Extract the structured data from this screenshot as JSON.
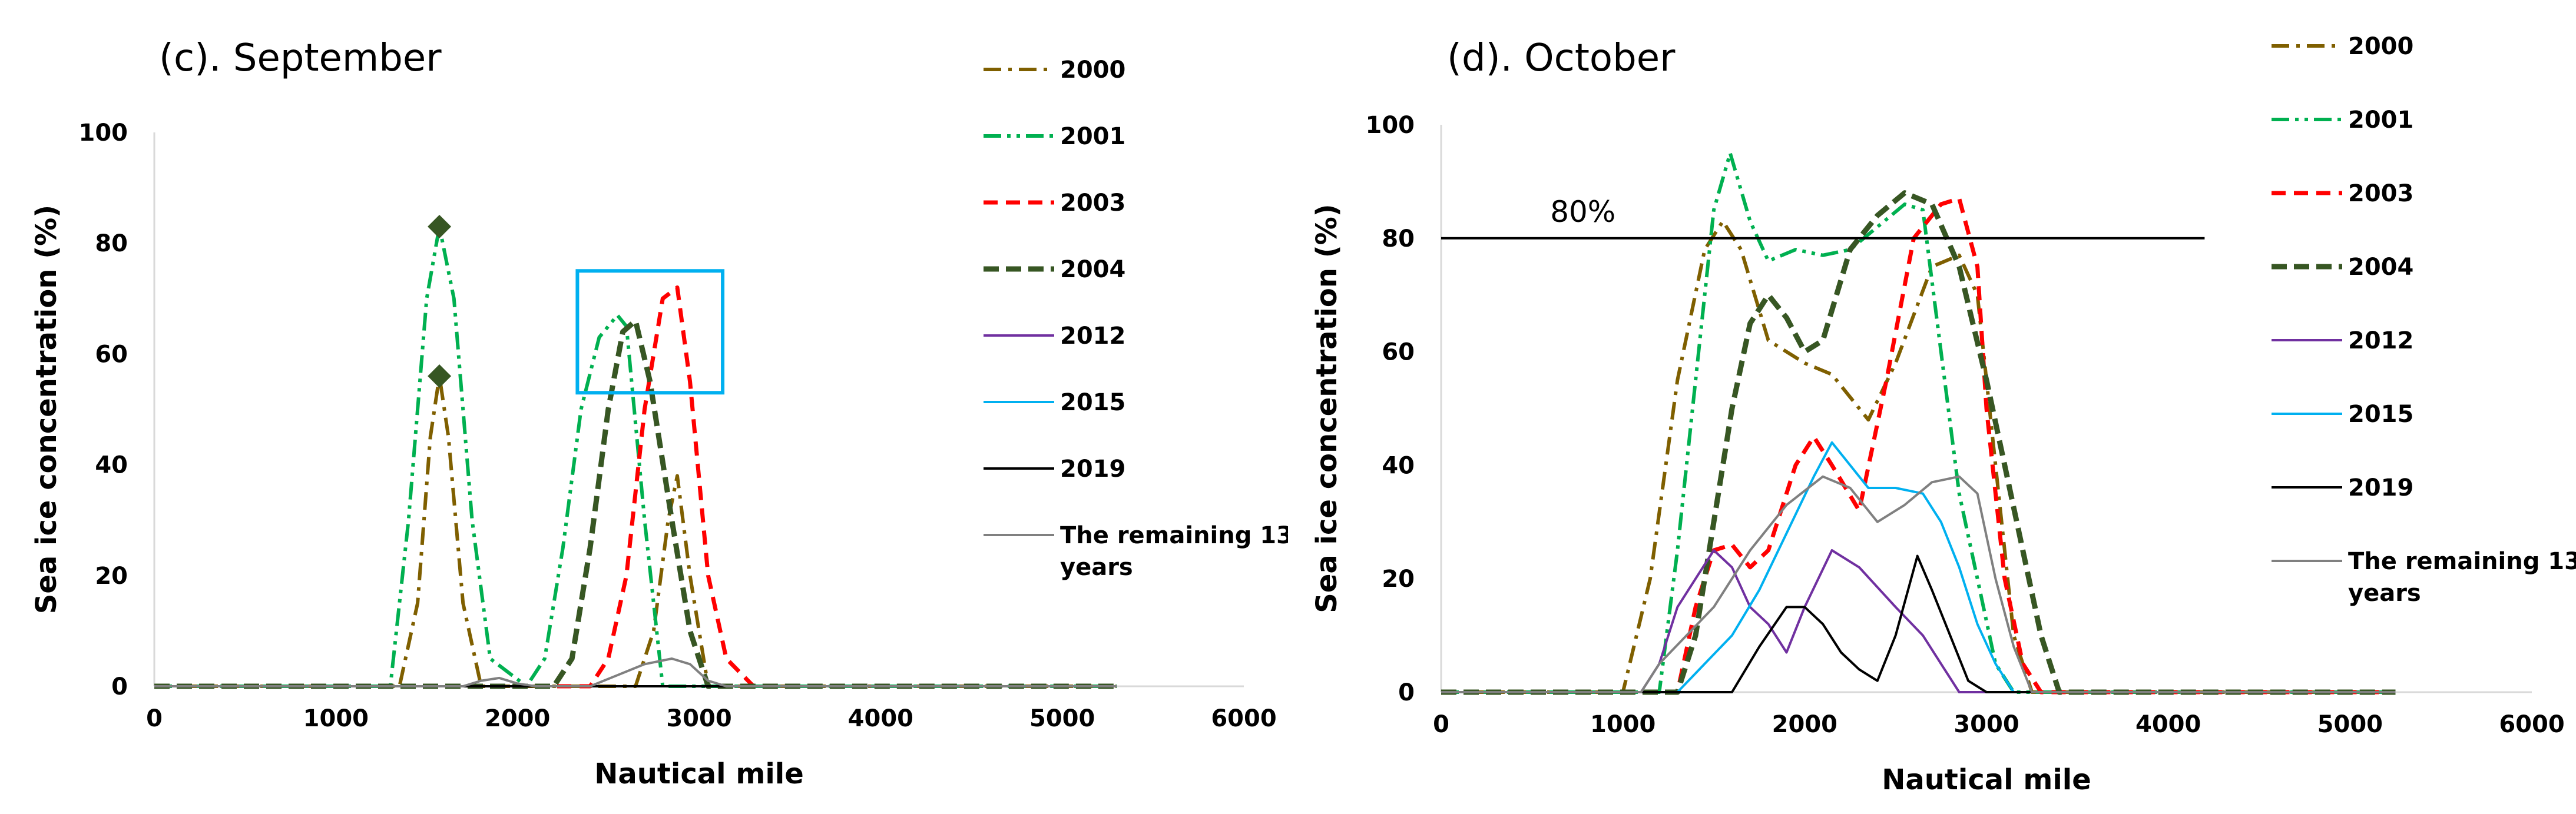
{
  "chart_data": [
    {
      "type": "line",
      "title": "(c). September",
      "xlabel": "Nautical mile",
      "ylabel": "Sea ice concentration (%)",
      "xlim": [
        0,
        6000
      ],
      "ylim": [
        0,
        100
      ],
      "xticks": [
        "0",
        "1000",
        "2000",
        "3000",
        "4000",
        "5000",
        "6000"
      ],
      "yticks": [
        "0",
        "20",
        "40",
        "60",
        "80",
        "100"
      ],
      "legend_position": "right",
      "legend": [
        "2000",
        "2001",
        "2003",
        "2004",
        "2012",
        "2015",
        "2019",
        "The remaining 13 years"
      ],
      "series": [
        {
          "name": "2000",
          "color": "#7f5f00",
          "dash": "dashdot",
          "points": [
            [
              0,
              0
            ],
            [
              1350,
              0
            ],
            [
              1450,
              15
            ],
            [
              1520,
              45
            ],
            [
              1570,
              56
            ],
            [
              1620,
              45
            ],
            [
              1700,
              15
            ],
            [
              1800,
              0
            ],
            [
              2650,
              0
            ],
            [
              2750,
              10
            ],
            [
              2830,
              30
            ],
            [
              2880,
              38
            ],
            [
              2950,
              20
            ],
            [
              3050,
              0
            ],
            [
              5300,
              0
            ]
          ]
        },
        {
          "name": "2001",
          "color": "#00b050",
          "dash": "dashdotdot",
          "points": [
            [
              0,
              0
            ],
            [
              1300,
              0
            ],
            [
              1400,
              30
            ],
            [
              1500,
              70
            ],
            [
              1570,
              83
            ],
            [
              1650,
              70
            ],
            [
              1750,
              30
            ],
            [
              1850,
              5
            ],
            [
              2050,
              0
            ],
            [
              2150,
              5
            ],
            [
              2250,
              25
            ],
            [
              2350,
              50
            ],
            [
              2450,
              63
            ],
            [
              2550,
              67
            ],
            [
              2600,
              65
            ],
            [
              2700,
              30
            ],
            [
              2800,
              0
            ],
            [
              5300,
              0
            ]
          ]
        },
        {
          "name": "2003",
          "color": "#ff0000",
          "dash": "dash",
          "points": [
            [
              0,
              0
            ],
            [
              2400,
              0
            ],
            [
              2500,
              5
            ],
            [
              2600,
              20
            ],
            [
              2700,
              50
            ],
            [
              2800,
              70
            ],
            [
              2880,
              72
            ],
            [
              2950,
              55
            ],
            [
              3050,
              20
            ],
            [
              3150,
              5
            ],
            [
              3300,
              0
            ],
            [
              5300,
              0
            ]
          ]
        },
        {
          "name": "2004",
          "color": "#375623",
          "dash": "dash-bold",
          "points": [
            [
              0,
              0
            ],
            [
              2200,
              0
            ],
            [
              2300,
              5
            ],
            [
              2400,
              25
            ],
            [
              2500,
              50
            ],
            [
              2580,
              64
            ],
            [
              2650,
              66
            ],
            [
              2730,
              55
            ],
            [
              2850,
              30
            ],
            [
              2950,
              10
            ],
            [
              3050,
              0
            ],
            [
              5300,
              0
            ]
          ]
        },
        {
          "name": "2012",
          "color": "#7030a0",
          "dash": "solid",
          "points": [
            [
              0,
              0
            ],
            [
              5300,
              0
            ]
          ]
        },
        {
          "name": "2015",
          "color": "#00b0f0",
          "dash": "solid",
          "points": [
            [
              0,
              0
            ],
            [
              5300,
              0
            ]
          ]
        },
        {
          "name": "2019",
          "color": "#000000",
          "dash": "solid",
          "points": [
            [
              0,
              0
            ],
            [
              5300,
              0
            ]
          ]
        },
        {
          "name": "The remaining 13 years",
          "color": "#808080",
          "dash": "solid",
          "points": [
            [
              0,
              0
            ],
            [
              1700,
              0
            ],
            [
              1800,
              1
            ],
            [
              1900,
              1.5
            ],
            [
              2000,
              0.5
            ],
            [
              2100,
              0
            ],
            [
              2400,
              0
            ],
            [
              2550,
              2
            ],
            [
              2700,
              4
            ],
            [
              2850,
              5
            ],
            [
              2950,
              4
            ],
            [
              3050,
              1
            ],
            [
              3150,
              0
            ],
            [
              5300,
              0
            ]
          ]
        }
      ],
      "markers": [
        {
          "x": 1570,
          "y": 83,
          "color": "#375623",
          "shape": "diamond"
        },
        {
          "x": 1570,
          "y": 56,
          "color": "#375623",
          "shape": "diamond"
        }
      ],
      "annotations": [
        {
          "type": "rect",
          "x0": 2330,
          "x1": 3130,
          "y0": 53,
          "y1": 75,
          "color": "#00b0f0"
        }
      ]
    },
    {
      "type": "line",
      "title": "(d). October",
      "xlabel": "Nautical mile",
      "ylabel": "Sea ice concentration (%)",
      "xlim": [
        0,
        6000
      ],
      "ylim": [
        0,
        100
      ],
      "xticks": [
        "0",
        "1000",
        "2000",
        "3000",
        "4000",
        "5000",
        "6000"
      ],
      "yticks": [
        "0",
        "20",
        "40",
        "60",
        "80",
        "100"
      ],
      "legend_position": "right",
      "legend": [
        "2000",
        "2001",
        "2003",
        "2004",
        "2012",
        "2015",
        "2019",
        "The remaining 13 years"
      ],
      "series": [
        {
          "name": "2000",
          "color": "#7f5f00",
          "dash": "dashdot",
          "points": [
            [
              0,
              0
            ],
            [
              1000,
              0
            ],
            [
              1150,
              20
            ],
            [
              1300,
              55
            ],
            [
              1450,
              78
            ],
            [
              1550,
              83
            ],
            [
              1650,
              78
            ],
            [
              1800,
              62
            ],
            [
              2000,
              58
            ],
            [
              2150,
              56
            ],
            [
              2350,
              48
            ],
            [
              2500,
              58
            ],
            [
              2700,
              75
            ],
            [
              2850,
              77
            ],
            [
              2950,
              70
            ],
            [
              3050,
              40
            ],
            [
              3150,
              10
            ],
            [
              3250,
              0
            ],
            [
              5250,
              0
            ]
          ]
        },
        {
          "name": "2001",
          "color": "#00b050",
          "dash": "dashdotdot",
          "points": [
            [
              0,
              0
            ],
            [
              1200,
              0
            ],
            [
              1300,
              25
            ],
            [
              1400,
              55
            ],
            [
              1500,
              85
            ],
            [
              1590,
              95
            ],
            [
              1700,
              83
            ],
            [
              1800,
              76
            ],
            [
              1950,
              78
            ],
            [
              2100,
              77
            ],
            [
              2250,
              78
            ],
            [
              2400,
              82
            ],
            [
              2550,
              86
            ],
            [
              2650,
              85
            ],
            [
              2750,
              60
            ],
            [
              2850,
              35
            ],
            [
              2950,
              20
            ],
            [
              3050,
              5
            ],
            [
              3150,
              0
            ],
            [
              5250,
              0
            ]
          ]
        },
        {
          "name": "2003",
          "color": "#ff0000",
          "dash": "dash",
          "points": [
            [
              0,
              0
            ],
            [
              1300,
              0
            ],
            [
              1400,
              15
            ],
            [
              1500,
              25
            ],
            [
              1600,
              26
            ],
            [
              1700,
              22
            ],
            [
              1800,
              25
            ],
            [
              1950,
              40
            ],
            [
              2050,
              45
            ],
            [
              2150,
              40
            ],
            [
              2300,
              32
            ],
            [
              2450,
              55
            ],
            [
              2600,
              80
            ],
            [
              2750,
              86
            ],
            [
              2850,
              87
            ],
            [
              2950,
              75
            ],
            [
              3000,
              50
            ],
            [
              3100,
              20
            ],
            [
              3200,
              5
            ],
            [
              3300,
              0
            ],
            [
              5250,
              0
            ]
          ]
        },
        {
          "name": "2004",
          "color": "#375623",
          "dash": "dash-bold",
          "points": [
            [
              0,
              0
            ],
            [
              1300,
              0
            ],
            [
              1400,
              10
            ],
            [
              1500,
              30
            ],
            [
              1600,
              50
            ],
            [
              1700,
              65
            ],
            [
              1800,
              70
            ],
            [
              1900,
              66
            ],
            [
              2000,
              60
            ],
            [
              2100,
              62
            ],
            [
              2250,
              78
            ],
            [
              2400,
              84
            ],
            [
              2550,
              88
            ],
            [
              2700,
              86
            ],
            [
              2850,
              75
            ],
            [
              3000,
              55
            ],
            [
              3100,
              40
            ],
            [
              3200,
              25
            ],
            [
              3300,
              10
            ],
            [
              3400,
              0
            ],
            [
              5250,
              0
            ]
          ]
        },
        {
          "name": "2012",
          "color": "#7030a0",
          "dash": "solid",
          "points": [
            [
              0,
              0
            ],
            [
              1100,
              0
            ],
            [
              1200,
              5
            ],
            [
              1300,
              15
            ],
            [
              1400,
              20
            ],
            [
              1500,
              25
            ],
            [
              1600,
              22
            ],
            [
              1700,
              15
            ],
            [
              1800,
              12
            ],
            [
              1900,
              7
            ],
            [
              2000,
              15
            ],
            [
              2150,
              25
            ],
            [
              2300,
              22
            ],
            [
              2500,
              15
            ],
            [
              2650,
              10
            ],
            [
              2750,
              5
            ],
            [
              2850,
              0
            ],
            [
              5250,
              0
            ]
          ]
        },
        {
          "name": "2015",
          "color": "#00b0f0",
          "dash": "solid",
          "points": [
            [
              0,
              0
            ],
            [
              1300,
              0
            ],
            [
              1450,
              5
            ],
            [
              1600,
              10
            ],
            [
              1750,
              18
            ],
            [
              1900,
              28
            ],
            [
              2050,
              38
            ],
            [
              2150,
              44
            ],
            [
              2250,
              40
            ],
            [
              2350,
              36
            ],
            [
              2500,
              36
            ],
            [
              2650,
              35
            ],
            [
              2750,
              30
            ],
            [
              2850,
              22
            ],
            [
              2950,
              12
            ],
            [
              3050,
              5
            ],
            [
              3150,
              0
            ],
            [
              5250,
              0
            ]
          ]
        },
        {
          "name": "2019",
          "color": "#000000",
          "dash": "solid",
          "points": [
            [
              0,
              0
            ],
            [
              1600,
              0
            ],
            [
              1750,
              8
            ],
            [
              1900,
              15
            ],
            [
              2000,
              15
            ],
            [
              2100,
              12
            ],
            [
              2200,
              7
            ],
            [
              2300,
              4
            ],
            [
              2400,
              2
            ],
            [
              2500,
              10
            ],
            [
              2620,
              24
            ],
            [
              2700,
              18
            ],
            [
              2800,
              10
            ],
            [
              2900,
              2
            ],
            [
              3000,
              0
            ],
            [
              5250,
              0
            ]
          ]
        },
        {
          "name": "The remaining 13 years",
          "color": "#808080",
          "dash": "solid",
          "points": [
            [
              0,
              0
            ],
            [
              1100,
              0
            ],
            [
              1200,
              5
            ],
            [
              1350,
              10
            ],
            [
              1500,
              15
            ],
            [
              1700,
              25
            ],
            [
              1900,
              33
            ],
            [
              2100,
              38
            ],
            [
              2250,
              36
            ],
            [
              2400,
              30
            ],
            [
              2550,
              33
            ],
            [
              2700,
              37
            ],
            [
              2850,
              38
            ],
            [
              2950,
              35
            ],
            [
              3050,
              20
            ],
            [
              3150,
              8
            ],
            [
              3250,
              0
            ],
            [
              5250,
              0
            ]
          ]
        }
      ],
      "reference_line": {
        "y": 80,
        "x0": 0,
        "x1": 4200,
        "label": "80%",
        "label_x": 600,
        "color": "#000000"
      }
    }
  ]
}
